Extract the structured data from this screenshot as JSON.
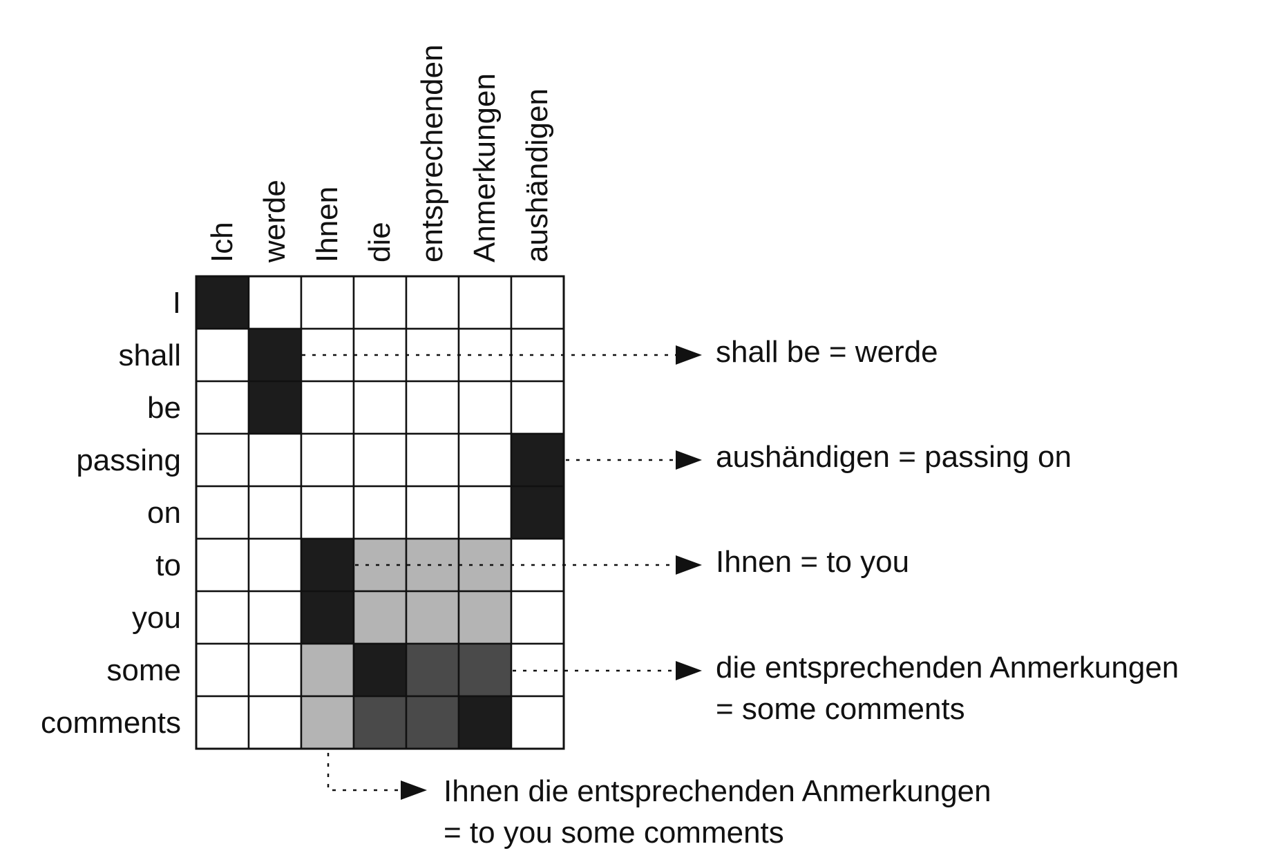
{
  "alignment": {
    "source_words": [
      "Ich",
      "werde",
      "Ihnen",
      "die",
      "entsprechenden",
      "Anmerkungen",
      "aushändigen"
    ],
    "target_words": [
      "I",
      "shall",
      "be",
      "passing",
      "on",
      "to",
      "you",
      "some",
      "comments"
    ],
    "cell_levels": [
      [
        3,
        0,
        0,
        0,
        0,
        0,
        0
      ],
      [
        0,
        3,
        0,
        0,
        0,
        0,
        0
      ],
      [
        0,
        3,
        0,
        0,
        0,
        0,
        0
      ],
      [
        0,
        0,
        0,
        0,
        0,
        0,
        3
      ],
      [
        0,
        0,
        0,
        0,
        0,
        0,
        3
      ],
      [
        0,
        0,
        3,
        1,
        1,
        1,
        0
      ],
      [
        0,
        0,
        3,
        1,
        1,
        1,
        0
      ],
      [
        0,
        0,
        1,
        3,
        2,
        2,
        0
      ],
      [
        0,
        0,
        1,
        2,
        2,
        3,
        0
      ]
    ],
    "shade_colors": [
      "#ffffff",
      "#b4b4b4",
      "#4a4a4a",
      "#1c1c1c"
    ]
  },
  "callouts": [
    {
      "id": "shall-be",
      "lines": [
        "shall be = werde"
      ]
    },
    {
      "id": "aushaendigen",
      "lines": [
        "aushändigen = passing on"
      ]
    },
    {
      "id": "ihnen",
      "lines": [
        "Ihnen = to you"
      ]
    },
    {
      "id": "die-entsprechenden",
      "lines": [
        "die entsprechenden Anmerkungen",
        "= some comments"
      ]
    },
    {
      "id": "ihnen-die",
      "lines": [
        "Ihnen die entsprechenden Anmerkungen",
        "= to you some comments"
      ]
    }
  ]
}
